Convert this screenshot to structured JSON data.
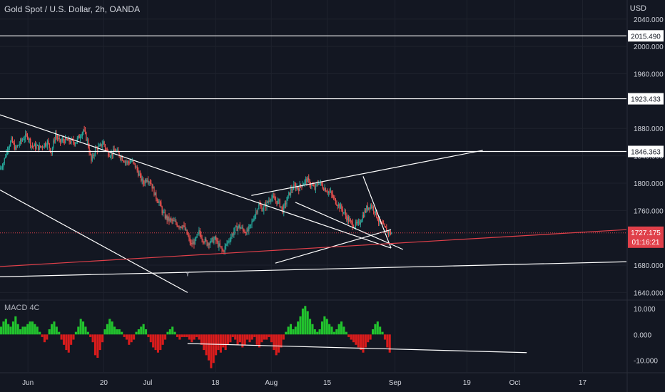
{
  "header": {
    "title": "Gold Spot / U.S. Dollar, 2h, OANDA",
    "currency": "USD"
  },
  "indicator": {
    "title": "MACD 4C"
  },
  "colors": {
    "background": "#131722",
    "grid": "#1e222d",
    "up": "#26a69a",
    "down": "#ef5350",
    "drawing": "#ffffff",
    "price_line": "#e0404a",
    "macd_pos": "#22c32e",
    "macd_neg": "#d81c1c"
  },
  "chart_data": [
    {
      "type": "candlestick",
      "title": "Gold Spot / U.S. Dollar, 2h, OANDA",
      "ylabel": "USD",
      "ylim": [
        1630,
        2045
      ],
      "y_ticks": [
        "2040.000",
        "2000.000",
        "1960.000",
        "1880.000",
        "1840.000",
        "1800.000",
        "1760.000",
        "1680.000",
        "1640.000"
      ],
      "x_ticks": [
        "Jun",
        "20",
        "Jul",
        "18",
        "Aug",
        "15",
        "Sep",
        "19",
        "Oct",
        "17"
      ],
      "x_tick_days": [
        0,
        19,
        30,
        47,
        61,
        75,
        92,
        110,
        122,
        139
      ],
      "xlim_days": [
        -7,
        150
      ],
      "last_data_day": 91,
      "horizontal_levels": [
        {
          "label": "2015.490",
          "value": 2015.49
        },
        {
          "label": "1923.433",
          "value": 1923.433
        },
        {
          "label": "1846.363",
          "value": 1846.363
        }
      ],
      "current_price": {
        "label": "1727.175",
        "value": 1727.175,
        "countdown": "01:16:21"
      },
      "price_path": [
        [
          -7,
          1820
        ],
        [
          -6,
          1830
        ],
        [
          -5,
          1852
        ],
        [
          -4,
          1862
        ],
        [
          -3,
          1850
        ],
        [
          -1,
          1866
        ],
        [
          0,
          1870
        ],
        [
          1,
          1855
        ],
        [
          3,
          1852
        ],
        [
          5,
          1860
        ],
        [
          6,
          1845
        ],
        [
          7,
          1872
        ],
        [
          8,
          1860
        ],
        [
          9,
          1863
        ],
        [
          10,
          1862
        ],
        [
          12,
          1860
        ],
        [
          13,
          1868
        ],
        [
          14,
          1878
        ],
        [
          15,
          1862
        ],
        [
          16,
          1832
        ],
        [
          17,
          1850
        ],
        [
          18,
          1852
        ],
        [
          19,
          1860
        ],
        [
          20,
          1845
        ],
        [
          21,
          1842
        ],
        [
          22,
          1848
        ],
        [
          24,
          1835
        ],
        [
          25,
          1830
        ],
        [
          26,
          1832
        ],
        [
          27,
          1825
        ],
        [
          28,
          1812
        ],
        [
          29,
          1800
        ],
        [
          30,
          1808
        ],
        [
          31,
          1800
        ],
        [
          32,
          1782
        ],
        [
          33,
          1772
        ],
        [
          34,
          1755
        ],
        [
          35,
          1748
        ],
        [
          36,
          1745
        ],
        [
          37,
          1742
        ],
        [
          38,
          1738
        ],
        [
          39,
          1738
        ],
        [
          40,
          1725
        ],
        [
          41,
          1710
        ],
        [
          42,
          1715
        ],
        [
          43,
          1728
        ],
        [
          44,
          1718
        ],
        [
          45,
          1712
        ],
        [
          46,
          1715
        ],
        [
          47,
          1718
        ],
        [
          48,
          1708
        ],
        [
          49,
          1700
        ],
        [
          50,
          1712
        ],
        [
          51,
          1722
        ],
        [
          52,
          1732
        ],
        [
          53,
          1737
        ],
        [
          54,
          1732
        ],
        [
          55,
          1728
        ],
        [
          56,
          1738
        ],
        [
          57,
          1755
        ],
        [
          58,
          1768
        ],
        [
          59,
          1762
        ],
        [
          60,
          1770
        ],
        [
          61,
          1780
        ],
        [
          62,
          1775
        ],
        [
          63,
          1772
        ],
        [
          64,
          1760
        ],
        [
          65,
          1775
        ],
        [
          66,
          1790
        ],
        [
          67,
          1795
        ],
        [
          68,
          1793
        ],
        [
          69,
          1800
        ],
        [
          70,
          1805
        ],
        [
          71,
          1798
        ],
        [
          72,
          1792
        ],
        [
          73,
          1802
        ],
        [
          74,
          1795
        ],
        [
          75,
          1790
        ],
        [
          76,
          1785
        ],
        [
          77,
          1775
        ],
        [
          78,
          1768
        ],
        [
          79,
          1760
        ],
        [
          80,
          1750
        ],
        [
          81,
          1742
        ],
        [
          82,
          1738
        ],
        [
          83,
          1740
        ],
        [
          84,
          1752
        ],
        [
          85,
          1763
        ],
        [
          86,
          1768
        ],
        [
          87,
          1760
        ],
        [
          88,
          1745
        ],
        [
          89,
          1738
        ],
        [
          90,
          1730
        ],
        [
          91,
          1727.175
        ]
      ],
      "trendlines": [
        [
          [
            -7,
            1900
          ],
          [
            91,
            1705
          ]
        ],
        [
          [
            -7,
            1790
          ],
          [
            40,
            1640
          ]
        ],
        [
          [
            56,
            1782
          ],
          [
            114,
            1848
          ]
        ],
        [
          [
            62,
            1683
          ],
          [
            91,
            1732
          ]
        ],
        [
          [
            67,
            1772
          ],
          [
            94,
            1703
          ]
        ],
        [
          [
            84,
            1810
          ],
          [
            91,
            1705
          ]
        ],
        [
          [
            -7,
            1663
          ],
          [
            150,
            1685
          ]
        ],
        [
          [
            -7,
            1678
          ],
          [
            150,
            1732
          ]
        ]
      ],
      "markers": [
        {
          "day": 40,
          "value": 1664,
          "label": "Y"
        }
      ]
    },
    {
      "type": "histogram",
      "title": "MACD 4C",
      "ylim": [
        -14.5,
        13
      ],
      "y_ticks": [
        "10.000",
        "0.000",
        "-10.000"
      ],
      "values": [
        3,
        5,
        6,
        4,
        3,
        5,
        7,
        4,
        2,
        3,
        3,
        4,
        5,
        5,
        4,
        3,
        1,
        -1,
        -3,
        -2,
        2,
        4,
        5,
        3,
        1,
        -2,
        -4,
        -6,
        -7,
        -4,
        -2,
        1,
        3,
        6,
        5,
        3,
        1,
        -1,
        -3,
        -8,
        -9,
        -6,
        -3,
        2,
        4,
        6,
        5,
        3,
        2,
        2,
        1,
        -1,
        -2,
        -4,
        -3,
        -2,
        1,
        2,
        3,
        4,
        2,
        -1,
        -3,
        -5,
        -6,
        -7,
        -6,
        -4,
        -2,
        1,
        2,
        3,
        1,
        -1,
        -2,
        -1,
        -1,
        -1,
        -2,
        -3,
        -2,
        -1,
        -2,
        -4,
        -6,
        -8,
        -10,
        -13,
        -11,
        -8,
        -6,
        -7,
        -5,
        -6,
        -4,
        -3,
        -1,
        -2,
        -4,
        -3,
        -5,
        -4,
        -2,
        -3,
        -2,
        -1,
        -4,
        -5,
        -3,
        -2,
        -2,
        -1,
        -3,
        -6,
        -8,
        -7,
        -5,
        -2,
        1,
        3,
        4,
        2,
        3,
        5,
        7,
        10,
        11,
        9,
        6,
        4,
        2,
        1,
        2,
        5,
        7,
        6,
        4,
        3,
        1,
        2,
        4,
        5,
        3,
        1,
        -1,
        -2,
        -3,
        -4,
        -5,
        -6,
        -7,
        -5,
        -3,
        -2,
        2,
        4,
        5,
        3,
        1,
        -2,
        -5,
        -7
      ],
      "trendline": [
        [
          40,
          -3.5
        ],
        [
          125,
          -7
        ]
      ]
    }
  ]
}
